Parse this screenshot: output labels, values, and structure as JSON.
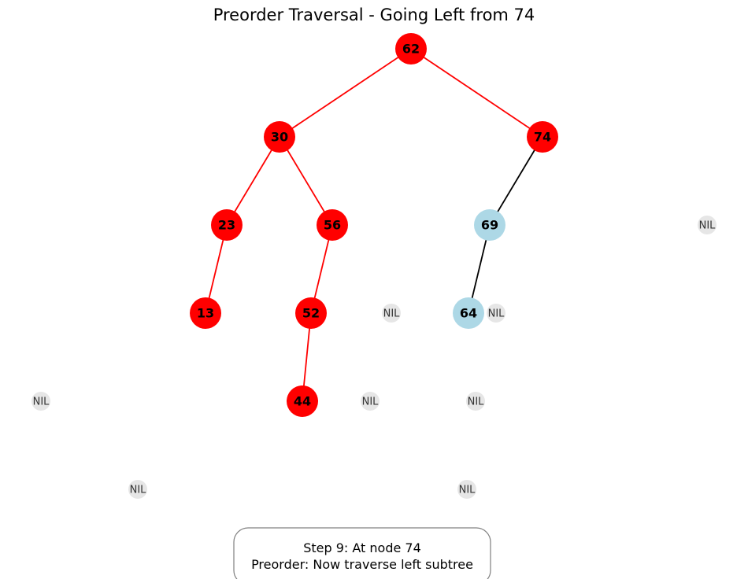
{
  "title": "Preorder Traversal - Going Left from 74",
  "colors": {
    "visited_node": "#ff0000",
    "unvisited_node": "#add8e6",
    "nil_node": "#e6e6e6",
    "visited_edge": "#ff0000",
    "unvisited_edge": "#000000"
  },
  "nodes": [
    {
      "id": "n62",
      "label": "62",
      "state": "visited"
    },
    {
      "id": "n30",
      "label": "30",
      "state": "visited"
    },
    {
      "id": "n74",
      "label": "74",
      "state": "visited"
    },
    {
      "id": "n23",
      "label": "23",
      "state": "visited"
    },
    {
      "id": "n56",
      "label": "56",
      "state": "visited"
    },
    {
      "id": "n69",
      "label": "69",
      "state": "unvisited"
    },
    {
      "id": "n13",
      "label": "13",
      "state": "visited"
    },
    {
      "id": "n52",
      "label": "52",
      "state": "visited"
    },
    {
      "id": "n64",
      "label": "64",
      "state": "unvisited"
    },
    {
      "id": "n44",
      "label": "44",
      "state": "visited"
    }
  ],
  "nil_label": "NIL",
  "nil_count": 8,
  "edges": [
    {
      "from": "62",
      "to": "30",
      "state": "visited"
    },
    {
      "from": "62",
      "to": "74",
      "state": "visited"
    },
    {
      "from": "30",
      "to": "23",
      "state": "visited"
    },
    {
      "from": "30",
      "to": "56",
      "state": "visited"
    },
    {
      "from": "23",
      "to": "13",
      "state": "visited"
    },
    {
      "from": "56",
      "to": "52",
      "state": "visited"
    },
    {
      "from": "52",
      "to": "44",
      "state": "visited"
    },
    {
      "from": "74",
      "to": "69",
      "state": "unvisited"
    },
    {
      "from": "69",
      "to": "64",
      "state": "unvisited"
    }
  ],
  "status": {
    "line1": "Step 9: At node 74",
    "line2": "Preorder: Now traverse left subtree"
  }
}
